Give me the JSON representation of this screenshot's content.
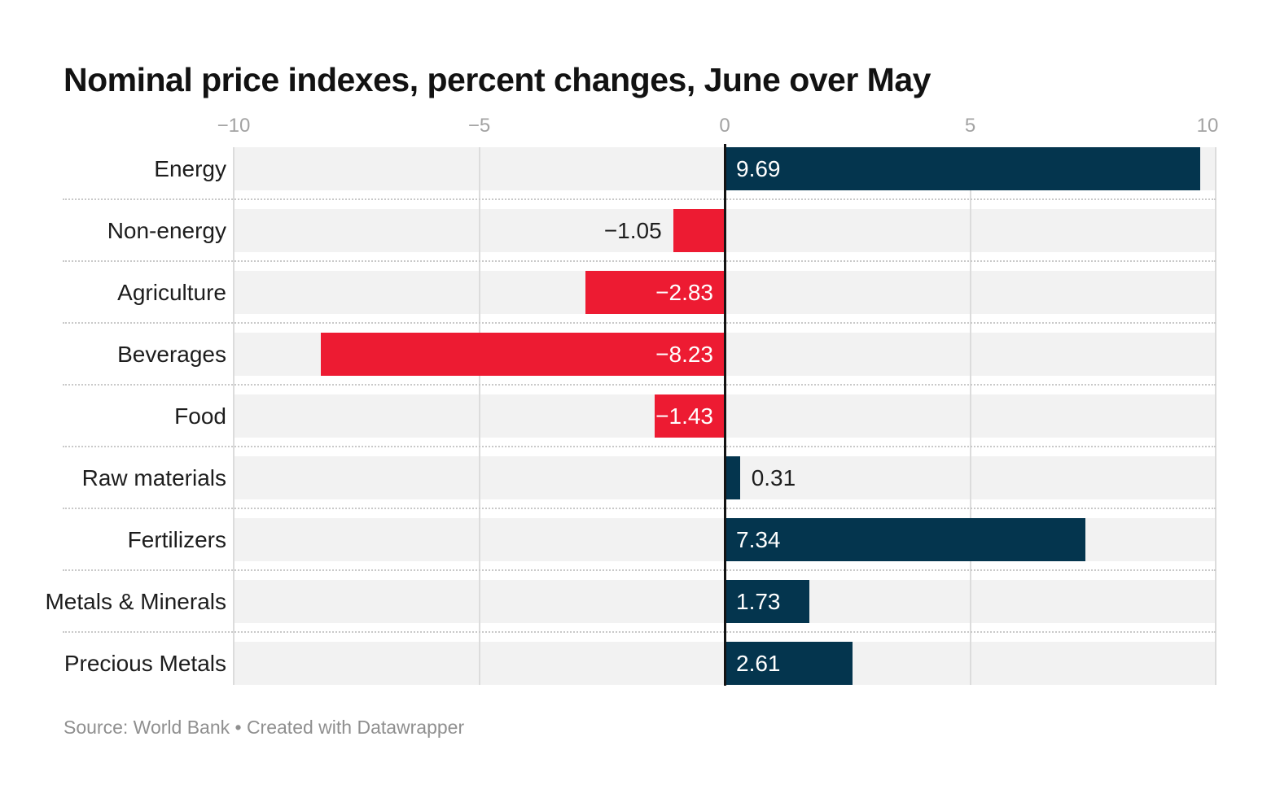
{
  "title": "Nominal price indexes, percent changes, June over May",
  "footer": {
    "source_text": "Source: World Bank • Created with Datawrapper"
  },
  "chart_data": {
    "type": "bar",
    "orientation": "horizontal",
    "title": "Nominal price indexes, percent changes, June over May",
    "categories": [
      "Energy",
      "Non-energy",
      "Agriculture",
      "Beverages",
      "Food",
      "Raw materials",
      "Fertilizers",
      "Metals & Minerals",
      "Precious Metals"
    ],
    "values": [
      9.69,
      -1.05,
      -2.83,
      -8.23,
      -1.43,
      0.31,
      7.34,
      1.73,
      2.61
    ],
    "value_labels": [
      "9.69",
      "−1.05",
      "−2.83",
      "−8.23",
      "−1.43",
      "0.31",
      "7.34",
      "1.73",
      "2.61"
    ],
    "xlabel": "",
    "ylabel": "",
    "xlim": [
      -10,
      10
    ],
    "x_ticks": [
      -10,
      -5,
      0,
      5,
      10
    ],
    "x_tick_labels": [
      "−10",
      "−5",
      "0",
      "5",
      "10"
    ],
    "grid": true,
    "legend": "none",
    "colors": {
      "positive": "#04354e",
      "negative": "#ed1b32",
      "row_background": "#f2f2f2",
      "gridline": "#dcdcdc",
      "zero_line": "#141414",
      "tick_label": "#a3a3a3",
      "category_label": "#1d1d1d",
      "value_label_inside": "#ffffff",
      "value_label_outside": "#1d1d1d"
    }
  }
}
